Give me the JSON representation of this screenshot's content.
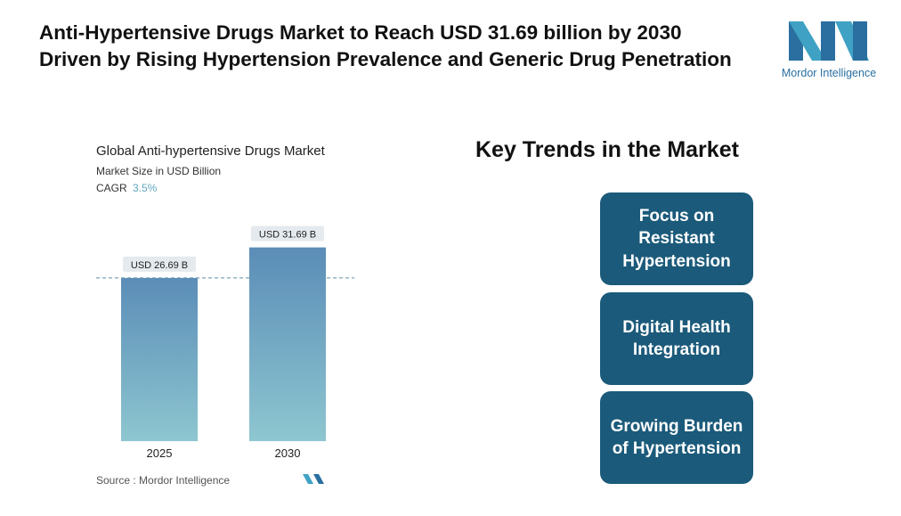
{
  "header": {
    "title": "Anti-Hypertensive Drugs Market to Reach USD 31.69 billion by 2030 Driven by Rising Hypertension Prevalence and Generic Drug Penetration",
    "logo_text": "Mordor Intelligence"
  },
  "chart_data": {
    "type": "bar",
    "title": "Global Anti-hypertensive Drugs Market",
    "subtitle": "Market Size in USD Billion",
    "cagr_label": "CAGR",
    "cagr": "3.5%",
    "categories": [
      "2025",
      "2030"
    ],
    "values": [
      26.69,
      31.69
    ],
    "value_labels": [
      "USD 26.69 B",
      "USD 31.69 B"
    ],
    "color_top": "#5b8db7",
    "color_bottom": "#8ec6d0",
    "source": "Source :  Mordor Intelligence"
  },
  "trends": {
    "title": "Key Trends in the Market",
    "items": [
      "Focus on Resistant Hypertension",
      "Digital Health Integration",
      "Growing Burden of Hypertension"
    ]
  }
}
